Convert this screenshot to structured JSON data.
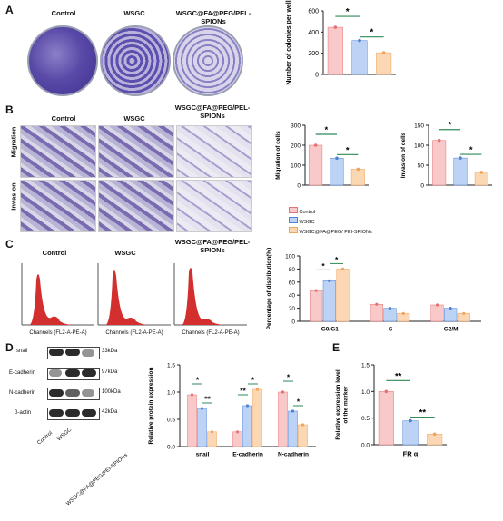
{
  "panels": {
    "A": "A",
    "B": "B",
    "C": "C",
    "D": "D",
    "E": "E"
  },
  "groups": {
    "control": "Control",
    "wsgc": "WSGC",
    "wsgc_fa": "WSGC@FA@PEG/PEL-SPIONs"
  },
  "rows": {
    "migration": "Migration",
    "invasion": "Invasion"
  },
  "flow_axis": "Channels (FL2-A-PE-A)",
  "legend": {
    "control": "Control",
    "wsgc": "WSGC",
    "wsgc_fa": "WSGC@FA@PEG/ PEI-SPIONs"
  },
  "blot": {
    "proteins": [
      "snail",
      "E-cadherin",
      "N-cadherin",
      "β-actin"
    ],
    "sizes": [
      "33kDa",
      "97kDa",
      "100kDa",
      "42kDa"
    ],
    "lanes": [
      "Control",
      "WSGC",
      "WSGC@FA@PEG/PEI-SPIONs"
    ]
  },
  "colors": {
    "control": "#f9c9c9",
    "wsgc": "#bcd3f5",
    "wsgc_fa": "#fbd7b4",
    "control_dot": "#e57373",
    "wsgc_dot": "#4f82d6",
    "wsgc_fa_dot": "#f0a35a",
    "sig_line": "#2e8b57"
  },
  "chart_data": [
    {
      "id": "colonies",
      "type": "bar",
      "ylabel": "Number of colonies per well",
      "ylim": [
        0,
        600
      ],
      "yticks": [
        "0",
        "200",
        "400",
        "600"
      ],
      "categories": [
        "Control",
        "WSGC",
        "WSGC@FA@PEG/PEL-SPIONs"
      ],
      "values": [
        445,
        320,
        205
      ],
      "sig": [
        "*",
        "*"
      ]
    },
    {
      "id": "migration",
      "type": "bar",
      "ylabel": "Migration of cells",
      "ylim": [
        0,
        300
      ],
      "yticks": [
        "0",
        "100",
        "200",
        "300"
      ],
      "categories": [
        "Control",
        "WSGC",
        "WSGC@FA@PEG/PEL-SPIONs"
      ],
      "values": [
        200,
        135,
        80
      ],
      "sig": [
        "*",
        "*"
      ]
    },
    {
      "id": "invasion",
      "type": "bar",
      "ylabel": "Invasion of cells",
      "ylim": [
        0,
        150
      ],
      "yticks": [
        "0",
        "50",
        "100",
        "150"
      ],
      "categories": [
        "Control",
        "WSGC",
        "WSGC@FA@PEG/PEL-SPIONs"
      ],
      "values": [
        112,
        68,
        32
      ],
      "sig": [
        "*",
        "*"
      ]
    },
    {
      "id": "cell_cycle",
      "type": "bar",
      "ylabel": "Percentage of distribution(%)",
      "ylim": [
        0,
        100
      ],
      "yticks": [
        "0",
        "20",
        "40",
        "60",
        "80",
        "100"
      ],
      "categories": [
        "G0/G1",
        "S",
        "G2/M"
      ],
      "series": [
        {
          "name": "Control",
          "values": [
            47,
            26,
            25
          ]
        },
        {
          "name": "WSGC",
          "values": [
            62,
            20,
            20
          ]
        },
        {
          "name": "WSGC@FA@PEG/ PEI-SPIONs",
          "values": [
            80,
            12,
            12
          ]
        }
      ],
      "sig": [
        "*",
        "*"
      ]
    },
    {
      "id": "protein",
      "type": "bar",
      "ylabel": "Relative protein expression",
      "ylim": [
        0,
        1.5
      ],
      "yticks": [
        "0.0",
        "0.5",
        "1.0",
        "1.5"
      ],
      "categories": [
        "snail",
        "E-cadherin",
        "N-cadherin"
      ],
      "series": [
        {
          "name": "Control",
          "values": [
            0.95,
            0.27,
            1.0
          ]
        },
        {
          "name": "WSGC",
          "values": [
            0.7,
            0.75,
            0.65
          ]
        },
        {
          "name": "WSGC@FA@PEG/ PEI-SPIONs",
          "values": [
            0.27,
            1.05,
            0.4
          ]
        }
      ],
      "sig": [
        "*",
        "**",
        "**",
        "*",
        "*",
        "*"
      ]
    },
    {
      "id": "fr_alpha",
      "type": "bar",
      "ylabel": "Relative expression level of the marker",
      "xlabel": "FR α",
      "ylim": [
        0,
        1.5
      ],
      "yticks": [
        "0.0",
        "0.5",
        "1.0",
        "1.5"
      ],
      "categories": [
        "Control",
        "WSGC",
        "WSGC@FA@PEG/PEL-SPIONs"
      ],
      "values": [
        1.0,
        0.45,
        0.2
      ],
      "sig": [
        "**",
        "**"
      ]
    }
  ]
}
